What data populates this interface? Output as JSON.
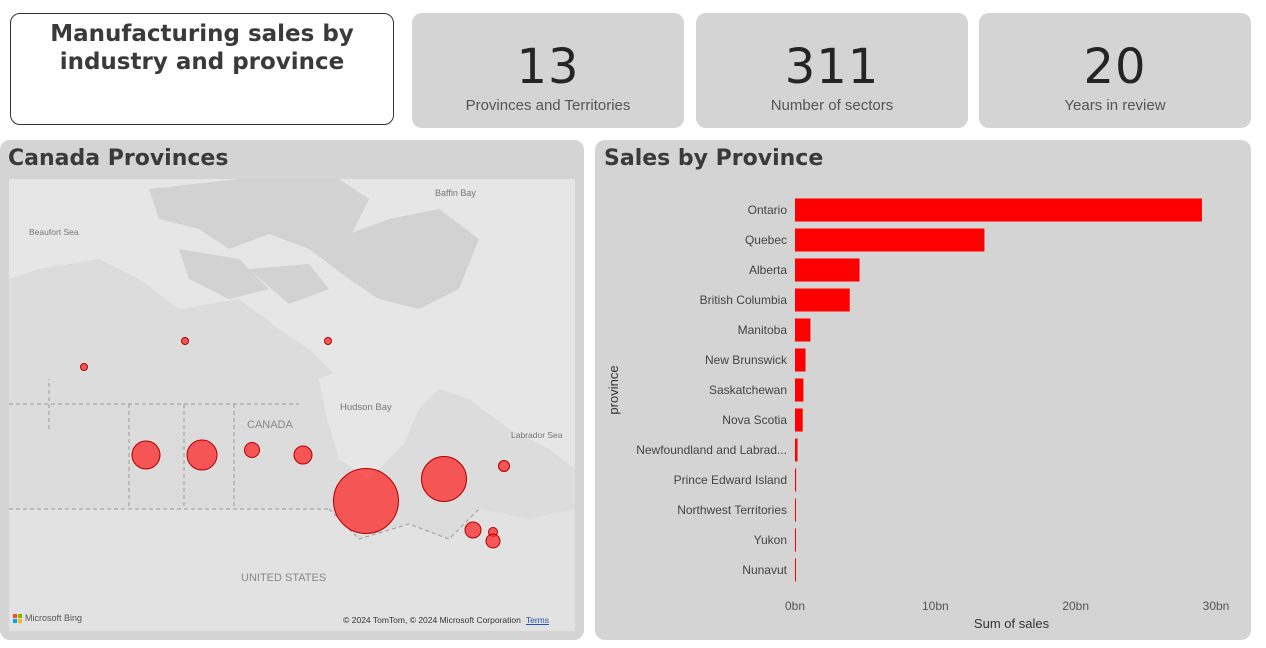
{
  "header": {
    "title": "Manufacturing sales by industry and province"
  },
  "kpis": [
    {
      "value": "13",
      "label": "Provinces and Territories"
    },
    {
      "value": "311",
      "label": "Number of sectors"
    },
    {
      "value": "20",
      "label": "Years in review"
    }
  ],
  "map": {
    "title": "Canada Provinces",
    "labels": {
      "baffin_bay": "Baffin Bay",
      "beaufort_sea": "Beaufort Sea",
      "hudson_bay": "Hudson Bay",
      "canada": "CANADA",
      "labrador_sea": "Labrador Sea",
      "united_states": "UNITED STATES"
    },
    "provider": "Microsoft Bing",
    "copyright": "© 2024 TomTom, © 2024 Microsoft Corporation",
    "terms": "Terms",
    "bubble_color": "#ff2828",
    "bubbles": [
      {
        "name": "Yukon"
      },
      {
        "name": "Northwest Territories"
      },
      {
        "name": "Nunavut"
      },
      {
        "name": "British Columbia"
      },
      {
        "name": "Alberta"
      },
      {
        "name": "Saskatchewan"
      },
      {
        "name": "Manitoba"
      },
      {
        "name": "Ontario"
      },
      {
        "name": "Quebec"
      },
      {
        "name": "Newfoundland and Labrador"
      },
      {
        "name": "New Brunswick"
      },
      {
        "name": "Prince Edward Island"
      },
      {
        "name": "Nova Scotia"
      }
    ]
  },
  "chart": {
    "title": "Sales by Province",
    "bar_color": "#ff0000"
  },
  "chart_data": {
    "type": "bar",
    "orientation": "horizontal",
    "categories": [
      "Ontario",
      "Quebec",
      "Alberta",
      "British Columbia",
      "Manitoba",
      "New Brunswick",
      "Saskatchewan",
      "Nova Scotia",
      "Newfoundland and Labrad...",
      "Prince Edward Island",
      "Northwest Territories",
      "Yukon",
      "Nunavut"
    ],
    "values": [
      29000000000,
      13500000000,
      4600000000,
      3900000000,
      1100000000,
      750000000,
      600000000,
      550000000,
      180000000,
      80000000,
      20000000,
      10000000,
      5000000
    ],
    "xlabel": "Sum of sales",
    "ylabel": "province",
    "xlim": [
      0,
      30000000000
    ],
    "ticks": [
      {
        "value": 0,
        "label": "0bn"
      },
      {
        "value": 10000000000,
        "label": "10bn"
      },
      {
        "value": 20000000000,
        "label": "20bn"
      },
      {
        "value": 30000000000,
        "label": "30bn"
      }
    ],
    "grid": false,
    "legend": "none"
  }
}
